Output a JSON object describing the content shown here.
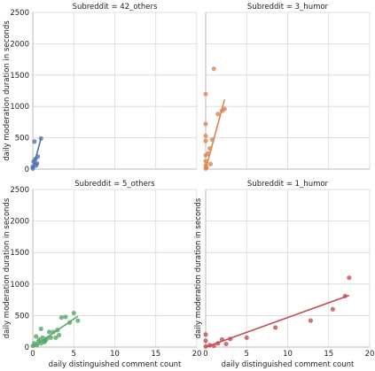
{
  "chart_data": [
    {
      "type": "scatter",
      "title": "Subreddit = 42_others",
      "xlabel": "",
      "ylabel": "daily moderation duration in seconds",
      "xlim": [
        0,
        20
      ],
      "ylim": [
        0,
        2500
      ],
      "xticks": [
        0,
        5,
        10,
        15,
        20
      ],
      "yticks": [
        0,
        500,
        1000,
        1500,
        2000,
        2500
      ],
      "color": "#4c72b0",
      "points": [
        [
          0,
          10
        ],
        [
          0,
          40
        ],
        [
          0.1,
          120
        ],
        [
          0.2,
          440
        ],
        [
          0.3,
          160
        ],
        [
          0.4,
          60
        ],
        [
          0.5,
          90
        ],
        [
          0.6,
          200
        ],
        [
          1,
          490
        ]
      ],
      "fit": {
        "x": [
          0,
          1
        ],
        "y": [
          0,
          490
        ]
      }
    },
    {
      "type": "scatter",
      "title": "Subreddit = 3_humor",
      "xlabel": "",
      "ylabel": "",
      "xlim": [
        0,
        20
      ],
      "ylim": [
        0,
        2500
      ],
      "xticks": [
        0,
        5,
        10,
        15,
        20
      ],
      "yticks": [
        0,
        500,
        1000,
        1500,
        2000,
        2500
      ],
      "color": "#dd8452",
      "points": [
        [
          0,
          10
        ],
        [
          0,
          60
        ],
        [
          0,
          130
        ],
        [
          0,
          220
        ],
        [
          0,
          450
        ],
        [
          0,
          530
        ],
        [
          0,
          720
        ],
        [
          0,
          1200
        ],
        [
          0.1,
          30
        ],
        [
          0.3,
          250
        ],
        [
          0.5,
          330
        ],
        [
          0.6,
          80
        ],
        [
          0.8,
          470
        ],
        [
          1,
          1600
        ],
        [
          1.5,
          880
        ],
        [
          2,
          930
        ],
        [
          2.3,
          960
        ]
      ],
      "fit": {
        "x": [
          0,
          2.3
        ],
        "y": [
          0,
          1110
        ]
      }
    },
    {
      "type": "scatter",
      "title": "Subreddit = 5_others",
      "xlabel": "daily distinguished comment count",
      "ylabel": "daily moderation duration in seconds",
      "xlim": [
        0,
        20
      ],
      "ylim": [
        0,
        2500
      ],
      "xticks": [
        0,
        5,
        10,
        15,
        20
      ],
      "yticks": [
        0,
        500,
        1000,
        1500,
        2000,
        2500
      ],
      "color": "#55a868",
      "points": [
        [
          0,
          20
        ],
        [
          0.2,
          60
        ],
        [
          0.4,
          170
        ],
        [
          0.5,
          30
        ],
        [
          0.7,
          90
        ],
        [
          0.8,
          120
        ],
        [
          1,
          60
        ],
        [
          1,
          290
        ],
        [
          1.2,
          150
        ],
        [
          1.4,
          80
        ],
        [
          1.5,
          100
        ],
        [
          1.7,
          130
        ],
        [
          2,
          240
        ],
        [
          2.2,
          150
        ],
        [
          2.5,
          240
        ],
        [
          2.8,
          150
        ],
        [
          3,
          270
        ],
        [
          3.2,
          190
        ],
        [
          3.5,
          470
        ],
        [
          4,
          480
        ],
        [
          4.5,
          390
        ],
        [
          5,
          540
        ],
        [
          5.5,
          420
        ]
      ],
      "fit": {
        "x": [
          0,
          5.5
        ],
        "y": [
          0,
          490
        ]
      }
    },
    {
      "type": "scatter",
      "title": "Subreddit = 1_humor",
      "xlabel": "daily distinguished comment count",
      "ylabel": "daily moderation duration in seconds",
      "xlim": [
        0,
        20
      ],
      "ylim": [
        0,
        2500
      ],
      "xticks": [
        0,
        5,
        10,
        15,
        20
      ],
      "yticks": [
        0,
        500,
        1000,
        1500,
        2000,
        2500
      ],
      "color": "#c44e52",
      "points": [
        [
          0,
          10
        ],
        [
          0,
          100
        ],
        [
          0,
          200
        ],
        [
          0.5,
          30
        ],
        [
          1,
          20
        ],
        [
          1.5,
          60
        ],
        [
          2,
          120
        ],
        [
          2.5,
          50
        ],
        [
          3,
          130
        ],
        [
          5,
          150
        ],
        [
          8.5,
          310
        ],
        [
          12.8,
          420
        ],
        [
          15.5,
          600
        ],
        [
          17,
          810
        ],
        [
          17.5,
          1100
        ]
      ],
      "fit": {
        "x": [
          0,
          17.5
        ],
        "y": [
          0,
          820
        ]
      }
    }
  ]
}
